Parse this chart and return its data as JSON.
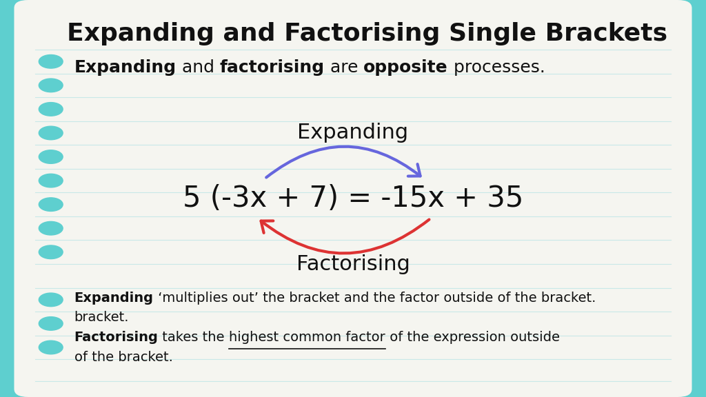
{
  "title": "Expanding and Factorising Single Brackets",
  "bg_outer": "#5ecfcf",
  "bg_inner": "#f5f5f0",
  "title_color": "#111111",
  "title_fontsize": 26,
  "bullet_color": "#5ecfcf",
  "expanding_label": "Expanding",
  "factorising_label": "Factorising",
  "equation": "5 (-3x + 7) = -15x + 35",
  "equation_fontsize": 30,
  "label_fontsize": 22,
  "arrow_blue": "#6666dd",
  "arrow_red": "#dd3333",
  "note1_bold": "Expanding",
  "note1_rest": " ‘multiplies out’ the bracket and the factor outside of the bracket.",
  "note2_bold": "Factorising",
  "note2_pre": " takes the ",
  "note2_underline": "highest common factor",
  "note2_post": " of the expression outside",
  "note2_line2": "of the bracket.",
  "text_fontsize": 14,
  "line1_parts": [
    [
      "Expanding",
      true
    ],
    [
      " and ",
      false
    ],
    [
      "factorising",
      true
    ],
    [
      " are ",
      false
    ],
    [
      "opposite",
      true
    ],
    [
      " processes.",
      false
    ]
  ]
}
